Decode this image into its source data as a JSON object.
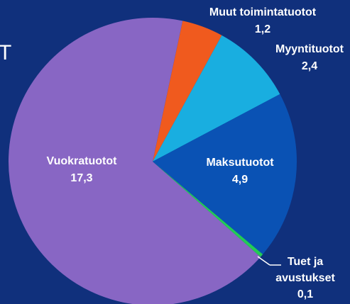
{
  "chart_data": {
    "type": "pie",
    "title": "T",
    "categories": [
      "Muut toimintatuotot",
      "Myyntituotot",
      "Maksutuotot",
      "Tuet ja avustukset",
      "Vuokratuotot"
    ],
    "values": [
      1.2,
      2.4,
      4.9,
      0.1,
      17.3
    ],
    "value_labels": [
      "1,2",
      "2,4",
      "4,9",
      "0,1",
      "17,3"
    ],
    "colors": [
      "#f05a1e",
      "#19aee0",
      "#0a52b4",
      "#22cc55",
      "#8866c4"
    ]
  }
}
